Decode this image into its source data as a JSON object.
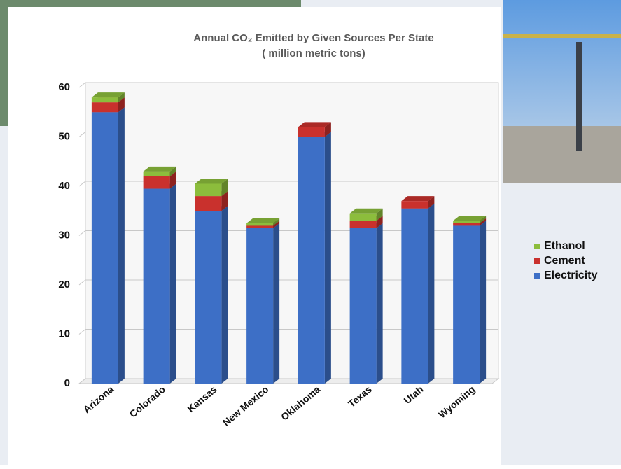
{
  "chart_data": {
    "type": "bar",
    "stacked": true,
    "title": "Annual CO₂ Emitted by Given Sources Per State",
    "subtitle": "( million metric tons)",
    "categories": [
      "Arizona",
      "Colorado",
      "Kansas",
      "New Mexico",
      "Oklahoma",
      "Texas",
      "Utah",
      "Wyoming"
    ],
    "series": [
      {
        "name": "Electricity",
        "color": "#3d6fc6",
        "values": [
          55,
          39.5,
          35,
          31.5,
          50,
          31.5,
          35.5,
          32
        ]
      },
      {
        "name": "Cement",
        "color": "#c9312d",
        "values": [
          2,
          2.5,
          3,
          0.5,
          2,
          1.5,
          1.5,
          0.5
        ]
      },
      {
        "name": "Ethanol",
        "color": "#8cbd3c",
        "values": [
          1,
          1,
          2.5,
          0.5,
          0,
          1.5,
          0,
          0.5
        ]
      }
    ],
    "ylim": [
      0,
      60
    ],
    "yticks": [
      0,
      10,
      20,
      30,
      40,
      50,
      60
    ],
    "grid": true,
    "legend": "right"
  }
}
